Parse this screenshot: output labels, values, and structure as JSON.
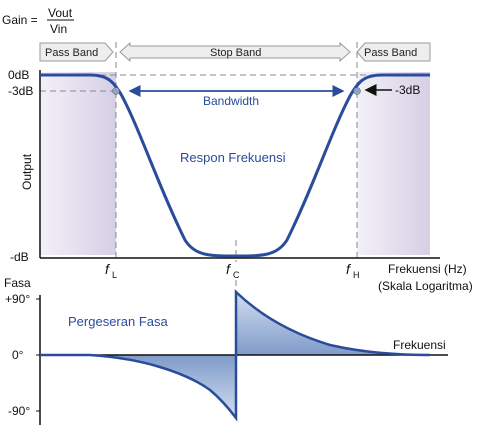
{
  "gain_formula": {
    "prefix": "Gain =",
    "numerator": "Vout",
    "denominator": "Vin"
  },
  "bands": {
    "left_pass": "Pass Band",
    "stop": "Stop Band",
    "right_pass": "Pass Band"
  },
  "amplitude_plot": {
    "y_axis_label": "Output",
    "y_ticks": [
      "0dB",
      "-3dB",
      "-dB"
    ],
    "bandwidth_label": "Bandwidth",
    "callout_label": "-3dB",
    "curve_title": "Respon Frekuensi",
    "x_axis_label": "Frekuensi (Hz)",
    "x_axis_sublabel": "(Skala Logaritma)",
    "freq_markers": [
      {
        "symbol": "f",
        "sub": "L"
      },
      {
        "symbol": "f",
        "sub": "C"
      },
      {
        "symbol": "f",
        "sub": "H"
      }
    ]
  },
  "phase_plot": {
    "y_axis_label": "Fasa",
    "y_ticks": [
      "+90°",
      "0°",
      "-90°"
    ],
    "curve_title": "Pergeseran Fasa",
    "x_axis_label": "Frekuensi"
  },
  "colors": {
    "curve": "#2a4c9a",
    "shade_stop": "#ffffff",
    "shade_pass": "#d8d2e6",
    "phase_fill": "#9fb6d8",
    "axis": "#111111"
  }
}
